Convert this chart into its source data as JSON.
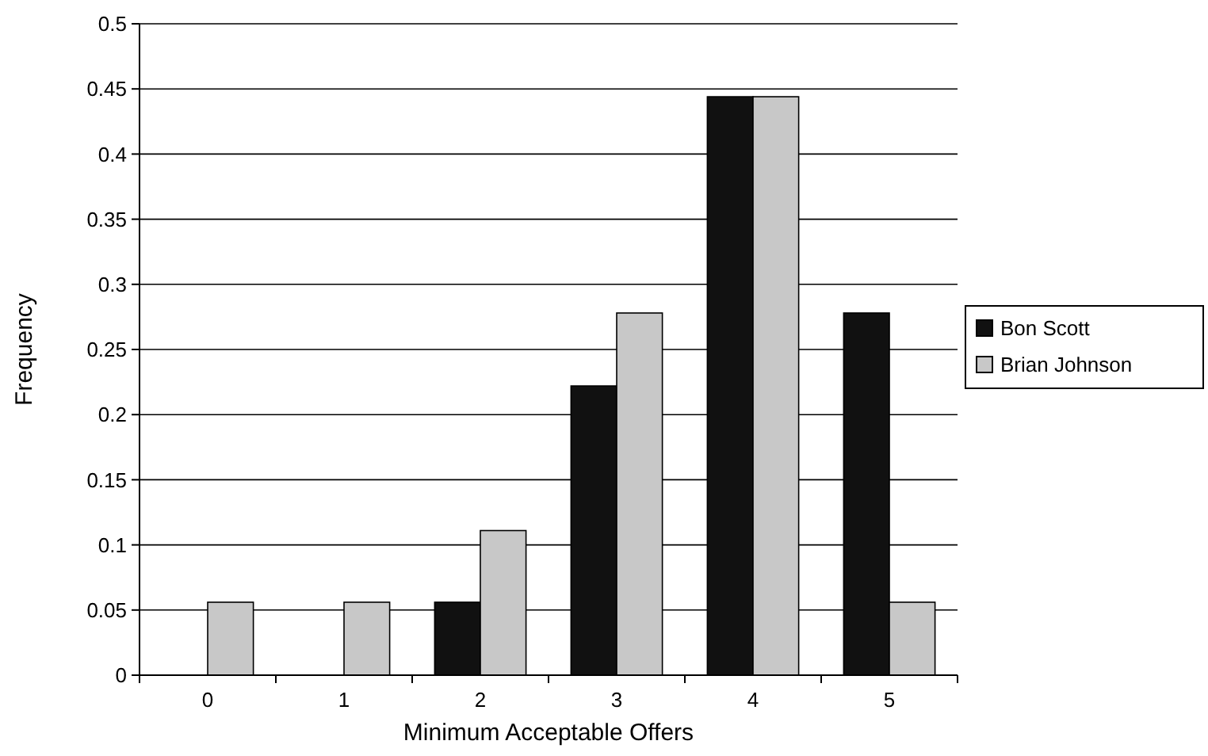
{
  "chart_data": {
    "type": "bar",
    "xlabel": "Minimum Acceptable Offers",
    "ylabel": "Frequency",
    "categories": [
      "0",
      "1",
      "2",
      "3",
      "4",
      "5"
    ],
    "series": [
      {
        "name": "Bon Scott",
        "color": "#111111",
        "values": [
          0,
          0,
          0.056,
          0.222,
          0.444,
          0.278
        ]
      },
      {
        "name": "Brian Johnson",
        "color": "#c8c8c8",
        "values": [
          0.056,
          0.056,
          0.111,
          0.278,
          0.444,
          0.056
        ]
      }
    ],
    "ylim": [
      0,
      0.5
    ],
    "yticks": [
      0,
      0.05,
      0.1,
      0.15,
      0.2,
      0.25,
      0.3,
      0.35,
      0.4,
      0.45,
      0.5
    ],
    "grid": "y",
    "legend": "right"
  }
}
